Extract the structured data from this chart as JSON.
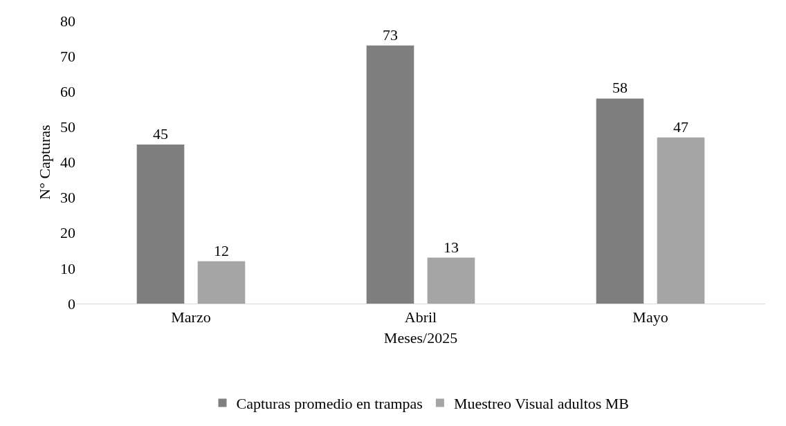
{
  "chart_data": {
    "type": "bar",
    "xlabel": "Meses/2025",
    "ylabel": "N° Capturas",
    "categories": [
      "Marzo",
      "Abril",
      "Mayo"
    ],
    "series": [
      {
        "name": "Capturas promedio en trampas",
        "color": "#7f7f7f",
        "values": [
          45,
          73,
          58
        ]
      },
      {
        "name": "Muestreo Visual adultos MB",
        "color": "#a5a5a5",
        "values": [
          12,
          13,
          47
        ]
      }
    ],
    "ylim": [
      0,
      80
    ],
    "yticks": [
      0,
      10,
      20,
      30,
      40,
      50,
      60,
      70,
      80
    ],
    "grid": false,
    "legend": "bottom",
    "data_labels": true
  }
}
